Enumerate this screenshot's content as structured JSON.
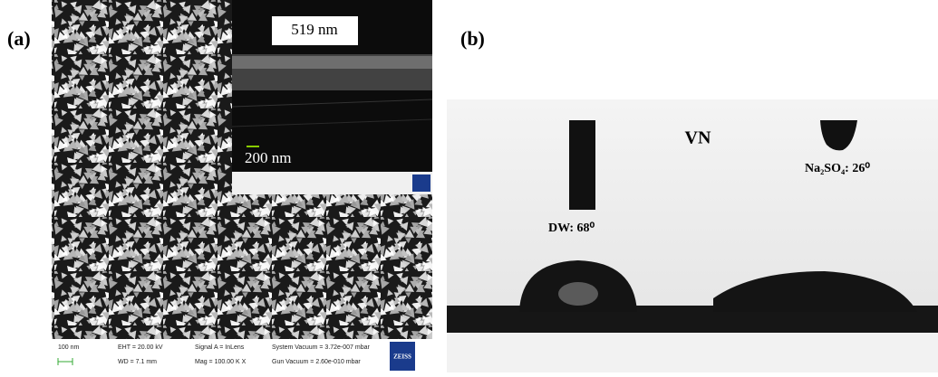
{
  "panel_a": {
    "label": "(a)",
    "inset_thickness": "519 nm",
    "inset_scale": "200 nm",
    "footer": {
      "scale": "100 nm",
      "eht": "EHT = 20.00 kV",
      "wd": "WD = 7.1 mm",
      "signal": "Signal A = InLens",
      "mag": "Mag = 100.00 K X",
      "system_vacuum": "System Vacuum = 3.72e-007 mbar",
      "gun_vacuum": "Gun Vacuum = 2.60e-010 mbar",
      "logo": "ZEISS"
    }
  },
  "panel_b": {
    "label": "(b)",
    "material": "VN",
    "dw": "DW: 68⁰",
    "na2so4": "Na₂SO₄: 26⁰"
  }
}
